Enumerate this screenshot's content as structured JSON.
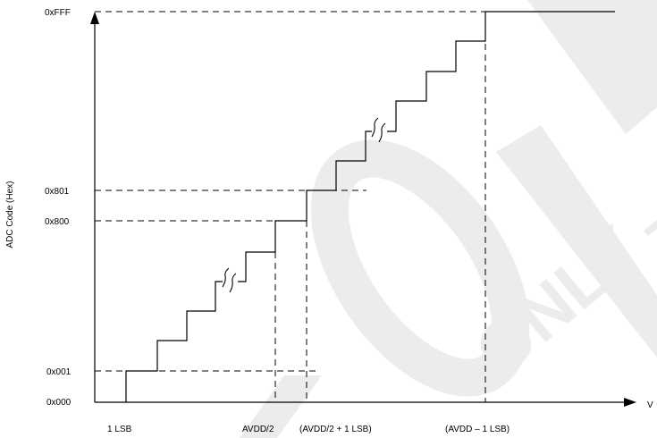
{
  "y_axis": {
    "title": "ADC Code (Hex)",
    "ticks": [
      "0xFFF",
      "0x801",
      "0x800",
      "0x001",
      "0x000"
    ]
  },
  "x_axis": {
    "title": "V",
    "ticks": [
      "1 LSB",
      "AVDD/2",
      "(AVDD/2 + 1 LSB)",
      "(AVDD – 1 LSB)"
    ]
  },
  "watermark": {
    "text": "ONLY — Restricted",
    "color": "#ececec"
  },
  "colors": {
    "line": "#000000",
    "background": "#ffffff"
  }
}
